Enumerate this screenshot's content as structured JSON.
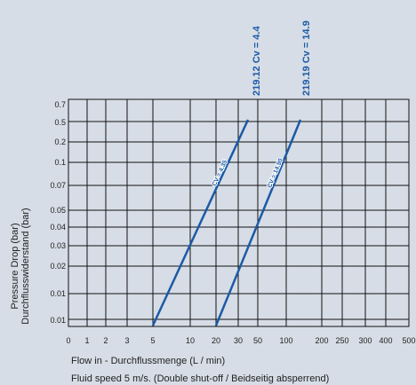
{
  "chart_data": {
    "type": "line",
    "xlabel": "Flow in - Durchflussmenge (L / min)",
    "ylabel": [
      "Pressure Drop (bar)",
      "Durchflusswiderstand (bar)"
    ],
    "caption": "Fluid speed 5 m/s. (Double shut-off / Beidseitig absperrend)",
    "x_ticks": [
      "0",
      "1",
      "2",
      "3",
      "5",
      "10",
      "20",
      "30",
      "50",
      "100",
      "200",
      "250",
      "300",
      "400",
      "500"
    ],
    "y_ticks": [
      "0.7",
      "0.5",
      "0.2",
      "0.1",
      "0.07",
      "0.05",
      "0.04",
      "0.03",
      "0.02",
      "0.01",
      "0.01"
    ],
    "grid": true,
    "series": [
      {
        "name": "219.12 Cv = 4.4",
        "line_label": "CV = 4.35",
        "color": "#1c5aa6",
        "points": [
          {
            "x": "5",
            "y": "0.01"
          },
          {
            "x": "40",
            "y": "0.5"
          }
        ]
      },
      {
        "name": "219.19 Cv = 14.9",
        "line_label": "CV = 14.90",
        "color": "#1c5aa6",
        "points": [
          {
            "x": "20",
            "y": "0.01"
          },
          {
            "x": "140",
            "y": "0.5"
          }
        ]
      }
    ]
  },
  "colors": {
    "background": "#d6dde6",
    "grid": "#111111",
    "line": "#1c5aa6"
  }
}
